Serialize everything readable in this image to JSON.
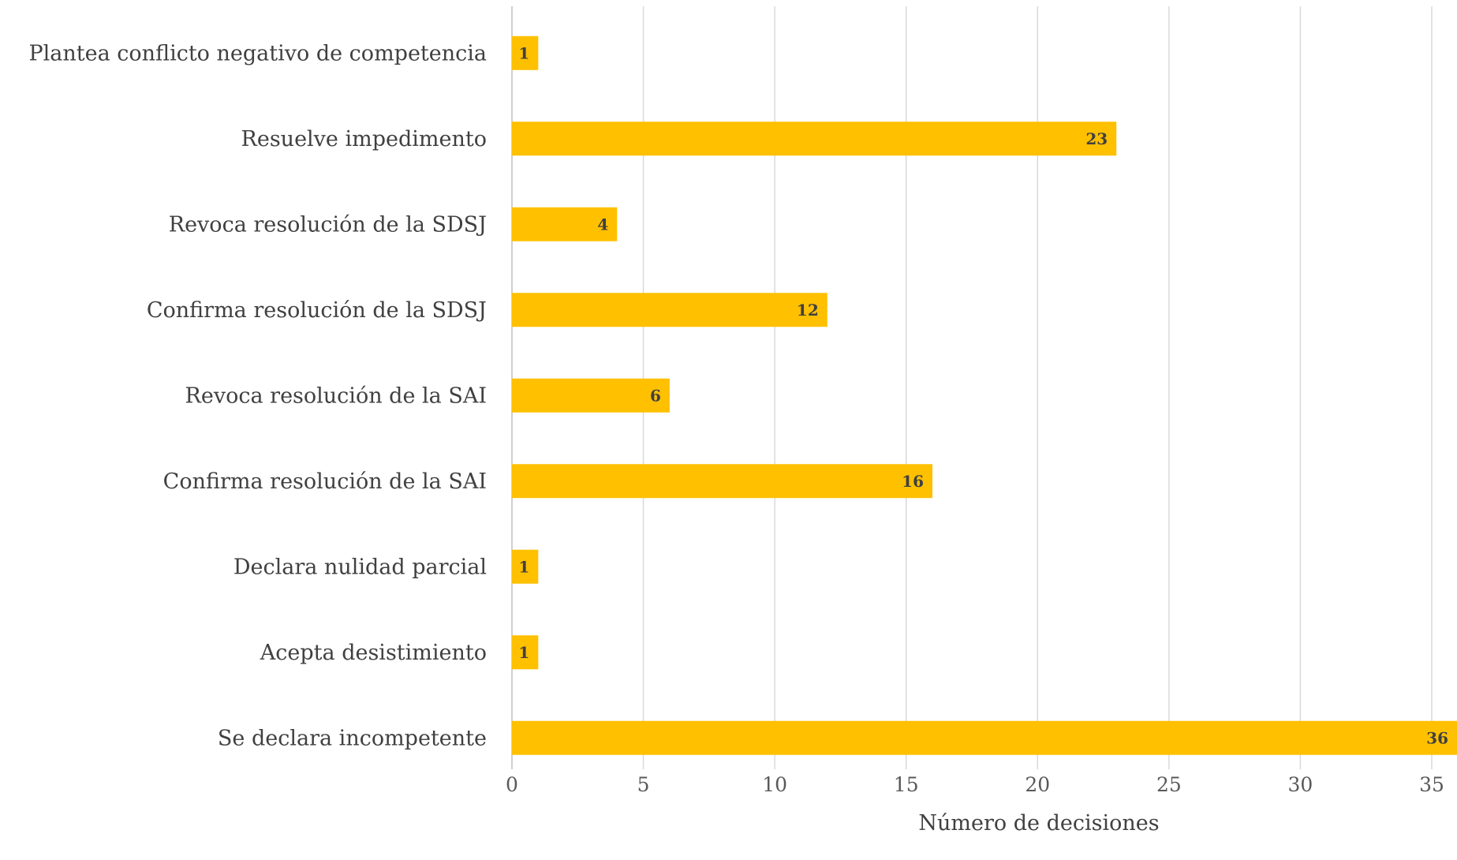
{
  "chart_data": {
    "type": "bar",
    "orientation": "horizontal",
    "categories": [
      "Plantea conflicto negativo de competencia",
      "Resuelve impedimento",
      "Revoca resolución de la SDSJ",
      "Confirma resolución de la SDSJ",
      "Revoca resolución de la SAI",
      "Confirma resolución de la SAI",
      "Declara nulidad parcial",
      "Acepta desistimiento",
      "Se declara incompetente"
    ],
    "values": [
      1,
      23,
      4,
      12,
      6,
      16,
      1,
      1,
      36
    ],
    "data_labels": [
      "1",
      "23",
      "4",
      "12",
      "6",
      "16",
      "1",
      "1",
      "36"
    ],
    "xlabel": "Número de decisiones",
    "ylabel": "",
    "xlim": [
      0,
      35
    ],
    "ticks": [
      "0",
      "5",
      "10",
      "15",
      "20",
      "25",
      "30",
      "35"
    ],
    "grid": "vertical",
    "legend": "none",
    "colors": {
      "bar": "#FFC000",
      "grid": "#D9D9D9",
      "axis": "#BFBFBF"
    }
  }
}
